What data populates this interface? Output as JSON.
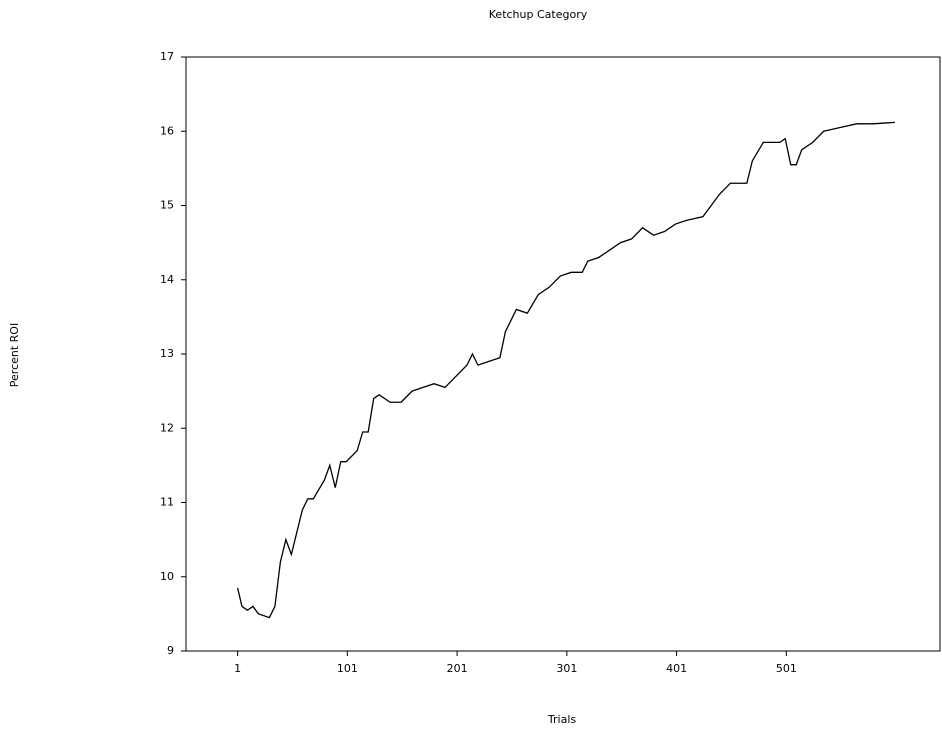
{
  "chart_data": {
    "type": "line",
    "title": "Ketchup Category",
    "x_label": "Trials",
    "y_label": "Percent ROI",
    "x": [
      1,
      5,
      10,
      15,
      20,
      30,
      35,
      40,
      45,
      50,
      55,
      60,
      65,
      70,
      80,
      85,
      90,
      95,
      100,
      110,
      115,
      120,
      125,
      130,
      140,
      150,
      160,
      170,
      180,
      190,
      200,
      210,
      215,
      220,
      230,
      240,
      245,
      255,
      265,
      275,
      285,
      295,
      305,
      315,
      320,
      330,
      340,
      350,
      360,
      370,
      380,
      390,
      400,
      410,
      425,
      430,
      440,
      450,
      465,
      470,
      480,
      495,
      500,
      505,
      510,
      515,
      525,
      535,
      550,
      565,
      580,
      600
    ],
    "series": [
      {
        "name": "Percent ROI",
        "color": "#000000",
        "values": [
          9.85,
          9.6,
          9.55,
          9.6,
          9.5,
          9.45,
          9.6,
          10.2,
          10.5,
          10.3,
          10.6,
          10.9,
          11.05,
          11.05,
          11.3,
          11.5,
          11.2,
          11.55,
          11.55,
          11.7,
          11.95,
          11.95,
          12.4,
          12.45,
          12.35,
          12.35,
          12.5,
          12.55,
          12.6,
          12.55,
          12.7,
          12.85,
          13.0,
          12.85,
          12.9,
          12.95,
          13.3,
          13.6,
          13.55,
          13.8,
          13.9,
          14.05,
          14.1,
          14.1,
          14.25,
          14.3,
          14.4,
          14.5,
          14.55,
          14.7,
          14.6,
          14.65,
          14.75,
          14.8,
          14.85,
          14.95,
          15.15,
          15.3,
          15.3,
          15.6,
          15.85,
          15.85,
          15.9,
          15.55,
          15.55,
          15.75,
          15.85,
          16.0,
          16.05,
          16.1,
          16.1,
          16.12
        ]
      }
    ],
    "xlim": [
      -46,
      641
    ],
    "xticks": [
      1,
      101,
      201,
      301,
      401,
      501
    ],
    "ylim": [
      9,
      17
    ],
    "yticks": [
      9,
      10,
      11,
      12,
      13,
      14,
      15,
      16,
      17
    ]
  }
}
